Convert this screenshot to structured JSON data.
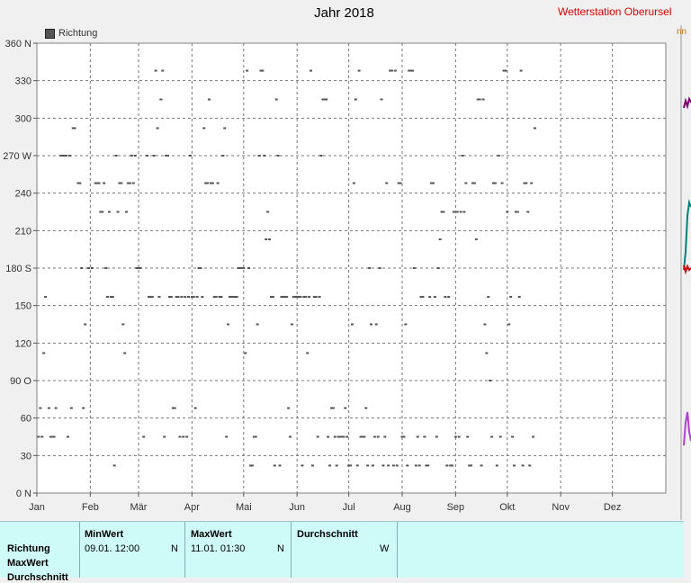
{
  "window": {
    "title": "Jahr 2018",
    "station": "Wetterstation Oberursel",
    "side_fragment": "nn"
  },
  "legend": {
    "label": "Richtung"
  },
  "chart_data": {
    "type": "scatter",
    "title": "Jahr 2018",
    "x_ticks": [
      "Jan",
      "Feb",
      "Mär",
      "Apr",
      "Mai",
      "Jun",
      "Jul",
      "Aug",
      "Sep",
      "Okt",
      "Nov",
      "Dez"
    ],
    "y_ticks": [
      "0 N",
      "30",
      "60",
      "90 O",
      "120",
      "150",
      "180 S",
      "210",
      "240",
      "270 W",
      "300",
      "330",
      "360 N"
    ],
    "ylim": [
      0,
      360
    ],
    "xlim_days": [
      0,
      365
    ],
    "grid": true,
    "legend_position": "top-left",
    "series": [
      {
        "name": "Richtung",
        "color": "#555555",
        "points": [
          [
            1,
            45
          ],
          [
            2,
            68
          ],
          [
            3,
            45
          ],
          [
            4,
            112
          ],
          [
            5,
            157
          ],
          [
            7,
            68
          ],
          [
            8,
            45
          ],
          [
            9,
            45
          ],
          [
            10,
            45
          ],
          [
            11,
            68
          ],
          [
            14,
            270
          ],
          [
            15,
            270
          ],
          [
            16,
            270
          ],
          [
            17,
            270
          ],
          [
            18,
            45
          ],
          [
            19,
            270
          ],
          [
            20,
            68
          ],
          [
            21,
            292
          ],
          [
            22,
            292
          ],
          [
            24,
            248
          ],
          [
            25,
            248
          ],
          [
            26,
            180
          ],
          [
            27,
            68
          ],
          [
            28,
            135
          ],
          [
            30,
            180
          ],
          [
            32,
            180
          ],
          [
            34,
            248
          ],
          [
            35,
            248
          ],
          [
            36,
            248
          ],
          [
            37,
            225
          ],
          [
            38,
            225
          ],
          [
            39,
            248
          ],
          [
            40,
            180
          ],
          [
            41,
            157
          ],
          [
            42,
            225
          ],
          [
            43,
            157
          ],
          [
            44,
            157
          ],
          [
            45,
            22
          ],
          [
            46,
            270
          ],
          [
            47,
            225
          ],
          [
            48,
            248
          ],
          [
            49,
            248
          ],
          [
            50,
            135
          ],
          [
            51,
            112
          ],
          [
            52,
            225
          ],
          [
            53,
            248
          ],
          [
            54,
            248
          ],
          [
            55,
            270
          ],
          [
            56,
            248
          ],
          [
            57,
            270
          ],
          [
            58,
            180
          ],
          [
            59,
            180
          ],
          [
            60,
            180
          ],
          [
            62,
            45
          ],
          [
            64,
            270
          ],
          [
            65,
            157
          ],
          [
            66,
            157
          ],
          [
            67,
            157
          ],
          [
            68,
            270
          ],
          [
            69,
            338
          ],
          [
            70,
            292
          ],
          [
            71,
            157
          ],
          [
            72,
            315
          ],
          [
            73,
            338
          ],
          [
            74,
            45
          ],
          [
            75,
            270
          ],
          [
            76,
            270
          ],
          [
            77,
            157
          ],
          [
            78,
            157
          ],
          [
            79,
            68
          ],
          [
            80,
            68
          ],
          [
            81,
            157
          ],
          [
            82,
            157
          ],
          [
            83,
            45
          ],
          [
            84,
            157
          ],
          [
            85,
            45
          ],
          [
            86,
            157
          ],
          [
            87,
            45
          ],
          [
            88,
            157
          ],
          [
            89,
            270
          ],
          [
            90,
            157
          ],
          [
            91,
            157
          ],
          [
            92,
            68
          ],
          [
            93,
            157
          ],
          [
            94,
            180
          ],
          [
            95,
            180
          ],
          [
            96,
            157
          ],
          [
            97,
            292
          ],
          [
            98,
            248
          ],
          [
            99,
            248
          ],
          [
            100,
            315
          ],
          [
            101,
            248
          ],
          [
            102,
            248
          ],
          [
            103,
            157
          ],
          [
            104,
            157
          ],
          [
            105,
            248
          ],
          [
            106,
            157
          ],
          [
            107,
            157
          ],
          [
            108,
            270
          ],
          [
            109,
            292
          ],
          [
            110,
            45
          ],
          [
            111,
            135
          ],
          [
            112,
            157
          ],
          [
            113,
            157
          ],
          [
            114,
            157
          ],
          [
            115,
            157
          ],
          [
            116,
            157
          ],
          [
            117,
            180
          ],
          [
            118,
            180
          ],
          [
            119,
            180
          ],
          [
            120,
            180
          ],
          [
            121,
            112
          ],
          [
            122,
            338
          ],
          [
            123,
            180
          ],
          [
            124,
            22
          ],
          [
            125,
            22
          ],
          [
            126,
            45
          ],
          [
            127,
            45
          ],
          [
            128,
            135
          ],
          [
            129,
            270
          ],
          [
            130,
            338
          ],
          [
            131,
            338
          ],
          [
            132,
            270
          ],
          [
            133,
            203
          ],
          [
            134,
            225
          ],
          [
            135,
            203
          ],
          [
            136,
            157
          ],
          [
            137,
            157
          ],
          [
            138,
            22
          ],
          [
            139,
            315
          ],
          [
            140,
            270
          ],
          [
            141,
            22
          ],
          [
            142,
            157
          ],
          [
            143,
            157
          ],
          [
            144,
            157
          ],
          [
            145,
            157
          ],
          [
            146,
            68
          ],
          [
            147,
            45
          ],
          [
            148,
            135
          ],
          [
            149,
            157
          ],
          [
            150,
            157
          ],
          [
            151,
            157
          ],
          [
            152,
            157
          ],
          [
            153,
            157
          ],
          [
            154,
            22
          ],
          [
            155,
            157
          ],
          [
            156,
            157
          ],
          [
            157,
            112
          ],
          [
            158,
            157
          ],
          [
            159,
            338
          ],
          [
            160,
            22
          ],
          [
            161,
            157
          ],
          [
            162,
            157
          ],
          [
            163,
            45
          ],
          [
            164,
            157
          ],
          [
            165,
            270
          ],
          [
            166,
            315
          ],
          [
            167,
            315
          ],
          [
            168,
            315
          ],
          [
            169,
            45
          ],
          [
            170,
            22
          ],
          [
            171,
            68
          ],
          [
            172,
            68
          ],
          [
            173,
            45
          ],
          [
            174,
            22
          ],
          [
            175,
            45
          ],
          [
            176,
            45
          ],
          [
            177,
            45
          ],
          [
            178,
            45
          ],
          [
            179,
            68
          ],
          [
            180,
            45
          ],
          [
            181,
            22
          ],
          [
            182,
            22
          ],
          [
            183,
            135
          ],
          [
            184,
            248
          ],
          [
            185,
            315
          ],
          [
            186,
            22
          ],
          [
            187,
            338
          ],
          [
            188,
            45
          ],
          [
            189,
            45
          ],
          [
            190,
            45
          ],
          [
            191,
            68
          ],
          [
            192,
            22
          ],
          [
            193,
            180
          ],
          [
            194,
            135
          ],
          [
            195,
            22
          ],
          [
            196,
            45
          ],
          [
            197,
            135
          ],
          [
            198,
            45
          ],
          [
            199,
            180
          ],
          [
            200,
            315
          ],
          [
            201,
            22
          ],
          [
            202,
            45
          ],
          [
            203,
            248
          ],
          [
            204,
            22
          ],
          [
            205,
            338
          ],
          [
            206,
            338
          ],
          [
            207,
            22
          ],
          [
            208,
            338
          ],
          [
            209,
            22
          ],
          [
            210,
            248
          ],
          [
            211,
            248
          ],
          [
            212,
            45
          ],
          [
            213,
            45
          ],
          [
            214,
            135
          ],
          [
            215,
            22
          ],
          [
            216,
            338
          ],
          [
            217,
            338
          ],
          [
            218,
            338
          ],
          [
            219,
            180
          ],
          [
            220,
            22
          ],
          [
            221,
            45
          ],
          [
            222,
            22
          ],
          [
            223,
            157
          ],
          [
            224,
            157
          ],
          [
            225,
            45
          ],
          [
            226,
            22
          ],
          [
            227,
            22
          ],
          [
            228,
            157
          ],
          [
            229,
            248
          ],
          [
            230,
            248
          ],
          [
            231,
            157
          ],
          [
            232,
            45
          ],
          [
            233,
            180
          ],
          [
            234,
            203
          ],
          [
            235,
            225
          ],
          [
            236,
            225
          ],
          [
            237,
            157
          ],
          [
            238,
            22
          ],
          [
            239,
            157
          ],
          [
            240,
            22
          ],
          [
            241,
            22
          ],
          [
            242,
            225
          ],
          [
            243,
            45
          ],
          [
            244,
            225
          ],
          [
            245,
            45
          ],
          [
            246,
            225
          ],
          [
            247,
            270
          ],
          [
            248,
            225
          ],
          [
            249,
            248
          ],
          [
            250,
            45
          ],
          [
            251,
            22
          ],
          [
            252,
            22
          ],
          [
            253,
            248
          ],
          [
            254,
            248
          ],
          [
            255,
            203
          ],
          [
            256,
            315
          ],
          [
            257,
            315
          ],
          [
            258,
            22
          ],
          [
            259,
            315
          ],
          [
            260,
            135
          ],
          [
            261,
            112
          ],
          [
            262,
            157
          ],
          [
            263,
            90
          ],
          [
            264,
            45
          ],
          [
            265,
            248
          ],
          [
            266,
            248
          ],
          [
            267,
            22
          ],
          [
            268,
            270
          ],
          [
            269,
            45
          ],
          [
            270,
            248
          ],
          [
            271,
            338
          ],
          [
            272,
            338
          ],
          [
            273,
            225
          ],
          [
            274,
            135
          ],
          [
            275,
            157
          ],
          [
            276,
            45
          ],
          [
            277,
            22
          ],
          [
            278,
            225
          ],
          [
            279,
            225
          ],
          [
            280,
            157
          ],
          [
            281,
            338
          ],
          [
            282,
            22
          ],
          [
            283,
            248
          ],
          [
            284,
            248
          ],
          [
            285,
            225
          ],
          [
            286,
            22
          ],
          [
            287,
            248
          ],
          [
            288,
            45
          ],
          [
            289,
            292
          ]
        ]
      }
    ]
  },
  "summary": {
    "row_labels": [
      "Richtung",
      "MaxWert",
      "Durchschnitt"
    ],
    "min": {
      "header": "MinWert",
      "value": "09.01.  12:00",
      "unit": "N"
    },
    "max": {
      "header": "MaxWert",
      "value": "11.01.  01:30",
      "unit": "N"
    },
    "avg": {
      "header": "Durchschnitt",
      "value": "",
      "unit": "W"
    }
  }
}
